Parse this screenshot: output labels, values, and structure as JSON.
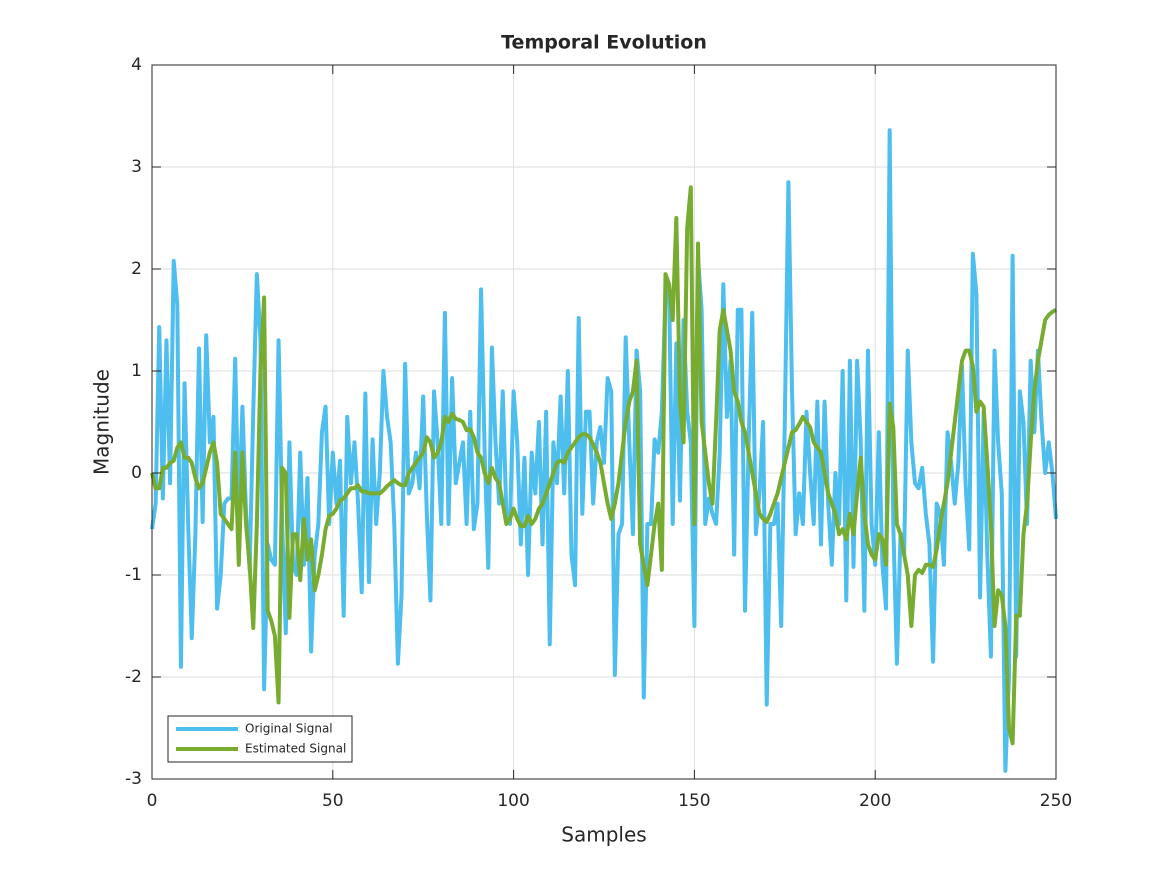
{
  "chart_data": {
    "type": "line",
    "title": "Temporal Evolution",
    "xlabel": "Samples",
    "ylabel": "Magnitude",
    "xlim": [
      0,
      250
    ],
    "ylim": [
      -3,
      4
    ],
    "xticks": [
      0,
      50,
      100,
      150,
      200,
      250
    ],
    "yticks": [
      -3,
      -2,
      -1,
      0,
      1,
      2,
      3,
      4
    ],
    "grid": true,
    "legend": "lower left",
    "x": [
      0,
      1,
      2,
      3,
      4,
      5,
      6,
      7,
      8,
      9,
      10,
      11,
      12,
      13,
      14,
      15,
      16,
      17,
      18,
      19,
      20,
      21,
      22,
      23,
      24,
      25,
      26,
      27,
      28,
      29,
      30,
      31,
      32,
      33,
      34,
      35,
      36,
      37,
      38,
      39,
      40,
      41,
      42,
      43,
      44,
      45,
      46,
      47,
      48,
      49,
      50,
      51,
      52,
      53,
      54,
      55,
      56,
      57,
      58,
      59,
      60,
      61,
      62,
      63,
      64,
      65,
      66,
      67,
      68,
      69,
      70,
      71,
      72,
      73,
      74,
      75,
      76,
      77,
      78,
      79,
      80,
      81,
      82,
      83,
      84,
      85,
      86,
      87,
      88,
      89,
      90,
      91,
      92,
      93,
      94,
      95,
      96,
      97,
      98,
      99,
      100,
      101,
      102,
      103,
      104,
      105,
      106,
      107,
      108,
      109,
      110,
      111,
      112,
      113,
      114,
      115,
      116,
      117,
      118,
      119,
      120,
      121,
      122,
      123,
      124,
      125,
      126,
      127,
      128,
      129,
      130,
      131,
      132,
      133,
      134,
      135,
      136,
      137,
      138,
      139,
      140,
      141,
      142,
      143,
      144,
      145,
      146,
      147,
      148,
      149,
      150,
      151,
      152,
      153,
      154,
      155,
      156,
      157,
      158,
      159,
      160,
      161,
      162,
      163,
      164,
      165,
      166,
      167,
      168,
      169,
      170,
      171,
      172,
      173,
      174,
      175,
      176,
      177,
      178,
      179,
      180,
      181,
      182,
      183,
      184,
      185,
      186,
      187,
      188,
      189,
      190,
      191,
      192,
      193,
      194,
      195,
      196,
      197,
      198,
      199,
      200,
      201,
      202,
      203,
      204,
      205,
      206,
      207,
      208,
      209,
      210,
      211,
      212,
      213,
      214,
      215,
      216,
      217,
      218,
      219,
      220,
      221,
      222,
      223,
      224,
      225,
      226,
      227,
      228,
      229,
      230,
      231,
      232,
      233,
      234,
      235,
      236,
      237,
      238,
      239,
      240,
      241,
      242,
      243,
      244,
      245,
      246,
      247,
      248,
      249,
      250
    ],
    "series": [
      {
        "name": "Original Signal",
        "color": "#4DBEEE",
        "values": [
          -0.55,
          -0.3,
          1.43,
          -0.25,
          1.3,
          -0.1,
          2.08,
          1.65,
          -1.9,
          0.88,
          -0.5,
          -1.62,
          -0.6,
          1.22,
          -0.48,
          1.35,
          0.3,
          0.55,
          -1.33,
          -1.0,
          -0.3,
          -0.25,
          -0.25,
          1.12,
          -0.5,
          0.65,
          -0.38,
          -0.95,
          0.6,
          1.95,
          1.3,
          -2.12,
          -0.7,
          -0.85,
          -0.9,
          1.3,
          -0.5,
          -1.57,
          0.3,
          -0.9,
          -1.0,
          0.2,
          -0.9,
          -0.05,
          -1.75,
          -0.8,
          -0.5,
          0.4,
          0.65,
          -0.5,
          0.2,
          -0.3,
          0.12,
          -1.4,
          0.55,
          -0.1,
          0.3,
          -0.3,
          -1.17,
          0.78,
          -1.07,
          0.33,
          -0.5,
          0.0,
          1.0,
          0.55,
          0.3,
          -0.5,
          -1.87,
          -1.2,
          1.07,
          -0.2,
          -0.1,
          0.2,
          -0.15,
          0.75,
          -0.4,
          -1.25,
          0.8,
          0.3,
          -0.5,
          1.57,
          -0.5,
          0.93,
          -0.1,
          0.1,
          0.3,
          -0.5,
          0.6,
          -0.55,
          -0.3,
          1.8,
          0.2,
          -0.93,
          1.23,
          0.3,
          -0.3,
          0.8,
          -0.4,
          -0.5,
          0.8,
          0.3,
          -0.7,
          0.15,
          -1.0,
          0.2,
          -0.2,
          0.5,
          -0.7,
          0.6,
          -1.68,
          0.3,
          -0.1,
          0.75,
          -0.2,
          1.0,
          -0.8,
          -1.1,
          1.52,
          -0.4,
          0.6,
          0.6,
          -0.3,
          0.3,
          0.45,
          0.1,
          0.93,
          0.8,
          -1.98,
          -0.6,
          -0.5,
          1.33,
          0.3,
          -0.6,
          1.2,
          0.8,
          -2.2,
          -0.5,
          -0.5,
          0.33,
          0.2,
          0.6,
          1.75,
          1.8,
          -0.5,
          1.27,
          -0.27,
          1.5,
          0.6,
          0.3,
          -1.5,
          2.1,
          1.6,
          -0.5,
          -0.25,
          -0.4,
          -0.5,
          0.2,
          1.85,
          0.55,
          1.1,
          -0.8,
          1.6,
          1.6,
          -1.35,
          0.3,
          1.57,
          -0.6,
          -0.2,
          0.5,
          -2.27,
          -0.5,
          -0.5,
          -0.3,
          -1.5,
          0.5,
          2.85,
          0.8,
          -0.6,
          -0.2,
          -0.5,
          0.6,
          0.0,
          -0.5,
          0.7,
          -0.7,
          0.7,
          -0.3,
          -0.9,
          0.0,
          -0.5,
          1.0,
          -1.25,
          1.1,
          -0.92,
          1.1,
          0.3,
          -1.35,
          1.2,
          -0.5,
          -0.9,
          0.4,
          -0.9,
          -1.33,
          3.36,
          -0.5,
          -1.87,
          -0.6,
          -0.8,
          1.2,
          0.3,
          -0.1,
          -0.15,
          0.05,
          -0.4,
          -0.7,
          -1.85,
          -0.3,
          -0.4,
          -0.9,
          0.4,
          0.1,
          -0.3,
          0.1,
          1.05,
          -0.1,
          -0.75,
          2.15,
          1.75,
          -1.22,
          0.6,
          -0.8,
          -1.8,
          1.2,
          0.3,
          -0.2,
          -2.92,
          -2.0,
          2.13,
          -1.8,
          0.8,
          0.5,
          -0.5,
          1.1,
          0.4,
          1.2,
          0.5,
          0.0,
          0.3,
          0.0,
          -0.45
        ]
      },
      {
        "name": "Estimated Signal",
        "color": "#77AC30",
        "values": [
          0,
          -0.15,
          -0.15,
          0.05,
          0.05,
          0.1,
          0.12,
          0.25,
          0.3,
          0.15,
          0.15,
          0.1,
          -0.05,
          -0.15,
          -0.1,
          0.05,
          0.2,
          0.3,
          0.1,
          -0.4,
          -0.45,
          -0.5,
          -0.55,
          0.2,
          -0.9,
          0.2,
          -0.5,
          -0.9,
          -1.52,
          -0.5,
          1.0,
          1.72,
          -1.35,
          -1.45,
          -1.6,
          -2.25,
          0.05,
          0.0,
          -1.42,
          -0.6,
          -0.6,
          -1.05,
          -0.45,
          -0.85,
          -0.65,
          -1.15,
          -1.0,
          -0.8,
          -0.55,
          -0.42,
          -0.4,
          -0.35,
          -0.27,
          -0.25,
          -0.2,
          -0.15,
          -0.15,
          -0.12,
          -0.18,
          -0.18,
          -0.2,
          -0.2,
          -0.2,
          -0.2,
          -0.17,
          -0.13,
          -0.1,
          -0.07,
          -0.1,
          -0.12,
          -0.12,
          0.0,
          0.05,
          0.1,
          0.15,
          0.2,
          0.35,
          0.3,
          0.15,
          0.2,
          0.3,
          0.55,
          0.5,
          0.58,
          0.53,
          0.52,
          0.5,
          0.42,
          0.43,
          0.35,
          0.2,
          0.15,
          0.0,
          -0.1,
          0.05,
          -0.05,
          -0.1,
          -0.3,
          -0.5,
          -0.45,
          -0.35,
          -0.45,
          -0.52,
          -0.52,
          -0.42,
          -0.5,
          -0.45,
          -0.35,
          -0.3,
          -0.2,
          -0.1,
          0.0,
          0.1,
          0.12,
          0.1,
          0.2,
          0.25,
          0.3,
          0.35,
          0.38,
          0.38,
          0.35,
          0.28,
          0.2,
          0.1,
          -0.1,
          -0.3,
          -0.45,
          -0.3,
          -0.1,
          0.2,
          0.5,
          0.7,
          0.8,
          1.1,
          -0.7,
          -0.9,
          -1.1,
          -0.8,
          -0.5,
          -0.3,
          -0.95,
          1.95,
          1.85,
          1.5,
          2.5,
          0.7,
          0.3,
          2.4,
          2.8,
          -0.5,
          2.25,
          0.5,
          0.2,
          -0.1,
          -0.3,
          0.5,
          1.4,
          1.6,
          1.4,
          1.2,
          0.8,
          0.7,
          0.5,
          0.4,
          0.2,
          0.0,
          -0.2,
          -0.4,
          -0.45,
          -0.48,
          -0.4,
          -0.3,
          -0.2,
          -0.05,
          0.1,
          0.25,
          0.4,
          0.42,
          0.48,
          0.55,
          0.5,
          0.45,
          0.3,
          0.25,
          0.2,
          0.0,
          -0.2,
          -0.3,
          -0.4,
          -0.6,
          -0.55,
          -0.65,
          -0.4,
          -0.6,
          -0.2,
          0.15,
          -0.4,
          -0.7,
          -0.8,
          -0.85,
          -0.6,
          -0.65,
          -0.9,
          0.68,
          0.45,
          -0.5,
          -0.6,
          -0.8,
          -1.0,
          -1.5,
          -1.0,
          -0.95,
          -0.98,
          -0.9,
          -0.9,
          -0.92,
          -0.75,
          -0.5,
          -0.3,
          -0.1,
          0.2,
          0.5,
          0.8,
          1.1,
          1.2,
          1.2,
          1.05,
          0.6,
          0.7,
          0.65,
          0.1,
          -0.5,
          -1.5,
          -1.15,
          -1.2,
          -1.5,
          -2.5,
          -2.65,
          -1.4,
          -1.4,
          -0.6,
          -0.3,
          0.3,
          0.8,
          1.1,
          1.3,
          1.5,
          1.55,
          1.58,
          1.6
        ]
      }
    ]
  }
}
